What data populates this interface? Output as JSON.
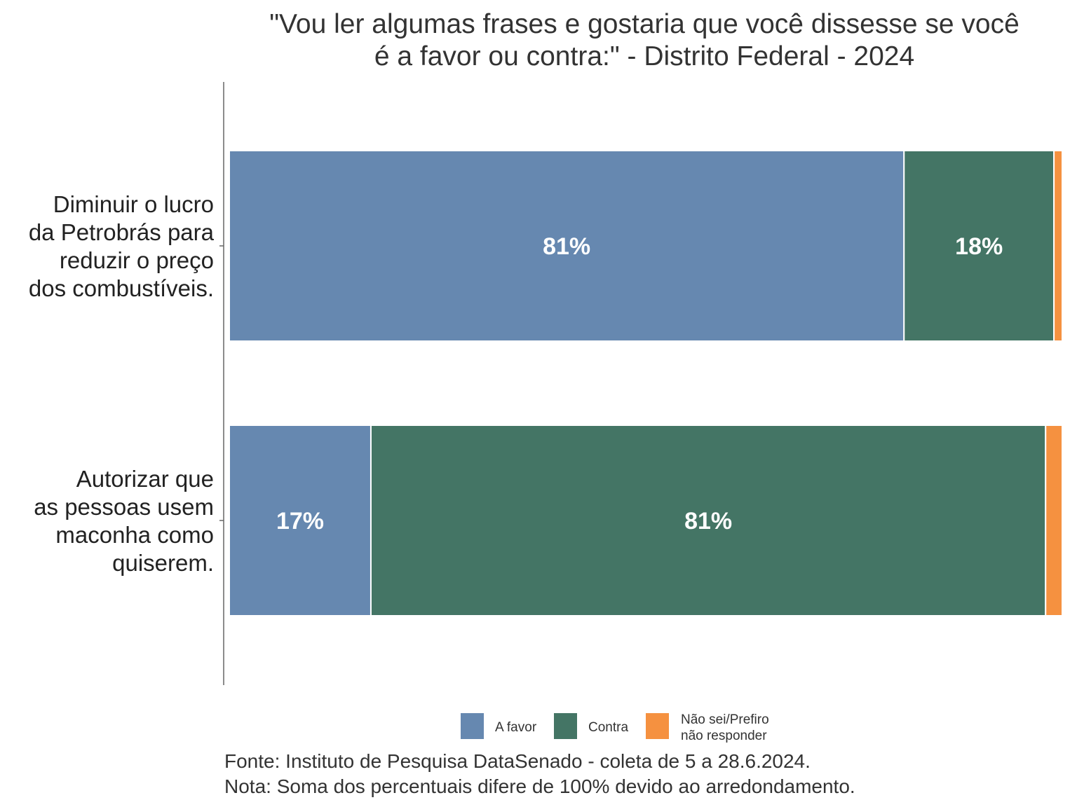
{
  "chart_data": {
    "type": "bar",
    "orientation": "horizontal",
    "stacked": true,
    "title_lines": [
      "\"Vou ler algumas frases e gostaria que você dissesse se você",
      "é a favor ou contra:\" - Distrito Federal - 2024"
    ],
    "categories": [
      {
        "lines": [
          "Diminuir o lucro",
          "da Petrobrás para",
          "reduzir o preço",
          "dos combustíveis."
        ],
        "values": [
          81,
          18,
          1
        ],
        "labels": [
          "81%",
          "18%",
          ""
        ]
      },
      {
        "lines": [
          "Autorizar que",
          "as pessoas usem",
          "maconha como",
          "quiserem."
        ],
        "values": [
          17,
          81,
          1
        ],
        "labels": [
          "17%",
          "81%",
          ""
        ]
      }
    ],
    "series": [
      {
        "name": "A favor",
        "legend_lines": [
          "A favor"
        ],
        "color": "#6688B0"
      },
      {
        "name": "Contra",
        "legend_lines": [
          "Contra"
        ],
        "color": "#447565"
      },
      {
        "name": "Não sei/Prefiro não responder",
        "legend_lines": [
          "Não sei/Prefiro",
          "não responder"
        ],
        "color": "#F59140"
      }
    ],
    "xlim": [
      0,
      100
    ],
    "legend_position": "bottom",
    "caption_lines": [
      "Fonte: Instituto de Pesquisa DataSenado - coleta de 5 a 28.6.2024.",
      "Nota: Soma dos percentuais difere de 100% devido ao arredondamento."
    ]
  }
}
